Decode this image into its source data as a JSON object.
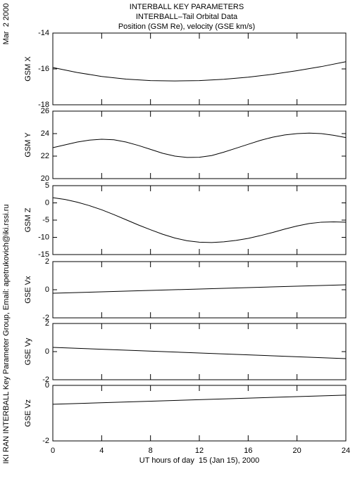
{
  "header": {
    "title": "INTERBALL KEY PARAMETERS",
    "subtitle": "INTERBALL–Tail Orbital Data",
    "description": "Position (GSM Re), velocity (GSE km/s)",
    "date": "Mar  2 2000",
    "credit": "IKI RAN INTERBALL Key Parameter Group, Email: apetrukovich@iki.rssi.ru"
  },
  "chart_data": [
    {
      "type": "line",
      "ylabel": "GSM X",
      "x": [
        0,
        2,
        4,
        6,
        8,
        10,
        12,
        14,
        16,
        18,
        20,
        22,
        24
      ],
      "values": [
        -15.92,
        -16.2,
        -16.42,
        -16.57,
        -16.65,
        -16.67,
        -16.65,
        -16.58,
        -16.46,
        -16.3,
        -16.1,
        -15.87,
        -15.6
      ],
      "xlim": [
        0,
        24
      ],
      "ylim": [
        -18,
        -14
      ],
      "yticks": [
        -18,
        -16,
        -14
      ],
      "color": "#000000"
    },
    {
      "type": "line",
      "ylabel": "GSM Y",
      "x": [
        0,
        1,
        2,
        3,
        4,
        5,
        6,
        7,
        8,
        9,
        10,
        11,
        12,
        13,
        14,
        15,
        16,
        17,
        18,
        19,
        20,
        21,
        22,
        23,
        24
      ],
      "values": [
        22.75,
        23.0,
        23.25,
        23.42,
        23.5,
        23.45,
        23.25,
        22.95,
        22.6,
        22.25,
        22.0,
        21.88,
        21.9,
        22.05,
        22.35,
        22.7,
        23.05,
        23.4,
        23.68,
        23.88,
        24.0,
        24.05,
        24.0,
        23.85,
        23.65
      ],
      "xlim": [
        0,
        24
      ],
      "ylim": [
        20,
        26
      ],
      "yticks": [
        20,
        22,
        24,
        26
      ],
      "color": "#000000"
    },
    {
      "type": "line",
      "ylabel": "GSM Z",
      "x": [
        0,
        1,
        2,
        3,
        4,
        5,
        6,
        7,
        8,
        9,
        10,
        11,
        12,
        13,
        14,
        15,
        16,
        17,
        18,
        19,
        20,
        21,
        22,
        23,
        24
      ],
      "values": [
        1.5,
        1.0,
        0.2,
        -0.8,
        -2.0,
        -3.4,
        -4.9,
        -6.4,
        -7.8,
        -9.1,
        -10.2,
        -11.0,
        -11.4,
        -11.5,
        -11.3,
        -10.9,
        -10.3,
        -9.5,
        -8.6,
        -7.6,
        -6.7,
        -6.0,
        -5.6,
        -5.5,
        -5.6
      ],
      "xlim": [
        0,
        24
      ],
      "ylim": [
        -15,
        5
      ],
      "yticks": [
        -15,
        -10,
        -5,
        0,
        5
      ],
      "color": "#000000"
    },
    {
      "type": "line",
      "ylabel": "GSE Vx",
      "x": [
        0,
        24
      ],
      "values": [
        -0.25,
        0.35
      ],
      "xlim": [
        0,
        24
      ],
      "ylim": [
        -2,
        2
      ],
      "yticks": [
        -2,
        0,
        2
      ],
      "color": "#000000"
    },
    {
      "type": "line",
      "ylabel": "GSE Vy",
      "x": [
        0,
        24
      ],
      "values": [
        0.3,
        -0.5
      ],
      "xlim": [
        0,
        24
      ],
      "ylim": [
        -2,
        2
      ],
      "yticks": [
        -2,
        0,
        2
      ],
      "color": "#000000"
    },
    {
      "type": "line",
      "ylabel": "GSE Vz",
      "x": [
        0,
        24
      ],
      "values": [
        -0.68,
        -0.35
      ],
      "xlim": [
        0,
        24
      ],
      "ylim": [
        -2,
        0
      ],
      "yticks": [
        -2,
        0
      ],
      "color": "#000000",
      "xticks": [
        0,
        4,
        8,
        12,
        16,
        20,
        24
      ],
      "xlabel": "UT hours of day  15 (Jan 15), 2000"
    }
  ]
}
